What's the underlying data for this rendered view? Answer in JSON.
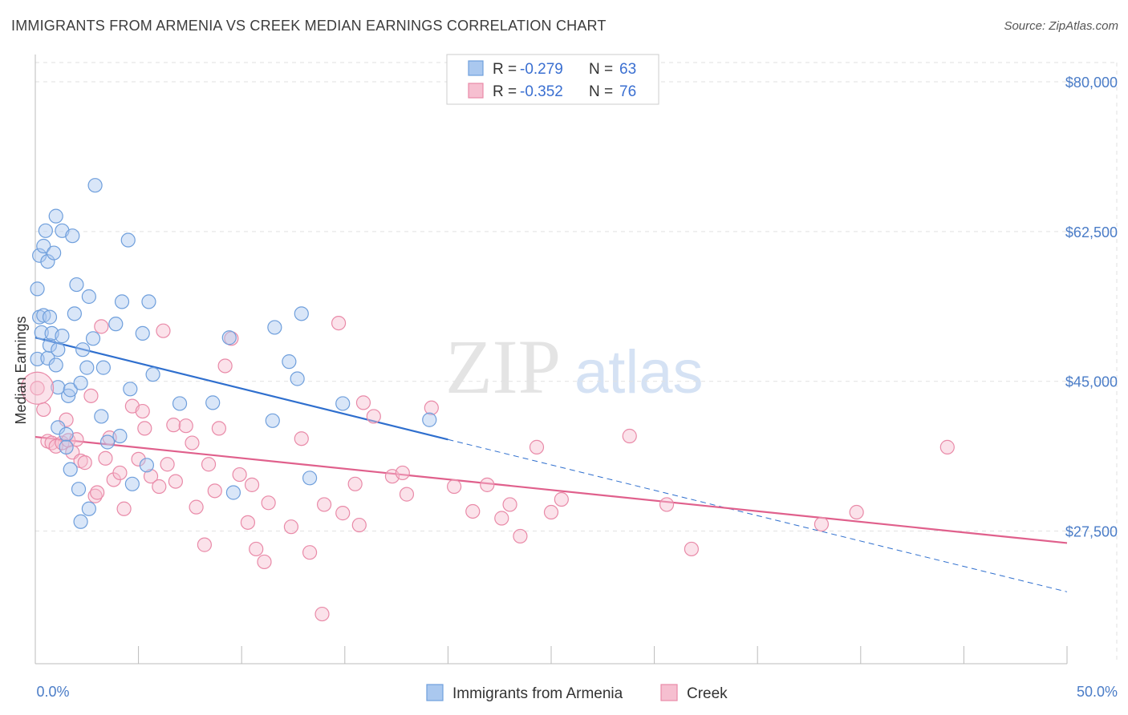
{
  "title": "IMMIGRANTS FROM ARMENIA VS CREEK MEDIAN EARNINGS CORRELATION CHART",
  "source": "Source: ZipAtlas.com",
  "watermark": {
    "zip": "ZIP",
    "atlas": "atlas"
  },
  "colors": {
    "blue_fill": "#aac8ef",
    "blue_stroke": "#6f9fdc",
    "blue_line": "#2f6fce",
    "pink_fill": "#f6bfd0",
    "pink_stroke": "#e98aa8",
    "pink_line": "#e0608c",
    "grid": "#e2e2e2",
    "axis_label": "#4a7cc7"
  },
  "legend": {
    "rows": [
      {
        "r_label": "R =",
        "r_value": "-0.279",
        "n_label": "N =",
        "n_value": "63"
      },
      {
        "r_label": "R =",
        "r_value": "-0.352",
        "n_label": "N =",
        "n_value": "76"
      }
    ]
  },
  "chart_data": {
    "type": "scatter",
    "xlabel": "",
    "ylabel": "Median Earnings",
    "xlim": [
      0,
      50
    ],
    "ylim": [
      12000,
      83000
    ],
    "x_tick_labels": [
      "0.0%",
      "50.0%"
    ],
    "y_ticks": [
      27500,
      45000,
      62500,
      80000
    ],
    "y_tick_labels": [
      "$27,500",
      "$45,000",
      "$62,500",
      "$80,000"
    ],
    "grid": true,
    "legend_placement": "top-center",
    "series": [
      {
        "name": "Immigrants from Armenia",
        "color": "blue",
        "trend": {
          "x0": 0,
          "y0": 50100,
          "x1_solid": 20,
          "y1_solid": 38200,
          "x1": 50,
          "y1": 20400
        },
        "points": [
          [
            0.1,
            55800
          ],
          [
            0.1,
            47600
          ],
          [
            0.2,
            52500
          ],
          [
            0.2,
            59700
          ],
          [
            0.3,
            50700
          ],
          [
            0.4,
            52700
          ],
          [
            0.4,
            60800
          ],
          [
            0.5,
            62600
          ],
          [
            0.6,
            59000
          ],
          [
            0.6,
            47700
          ],
          [
            0.7,
            52500
          ],
          [
            0.7,
            49200
          ],
          [
            0.8,
            50600
          ],
          [
            0.9,
            60000
          ],
          [
            1.0,
            64300
          ],
          [
            1.0,
            46900
          ],
          [
            1.1,
            48700
          ],
          [
            1.1,
            44300
          ],
          [
            1.1,
            39600
          ],
          [
            1.3,
            62600
          ],
          [
            1.3,
            50300
          ],
          [
            1.5,
            38800
          ],
          [
            1.5,
            37300
          ],
          [
            1.6,
            43300
          ],
          [
            1.7,
            34700
          ],
          [
            1.7,
            44000
          ],
          [
            1.8,
            62000
          ],
          [
            1.9,
            52900
          ],
          [
            2.0,
            56300
          ],
          [
            2.1,
            32400
          ],
          [
            2.2,
            28600
          ],
          [
            2.2,
            44800
          ],
          [
            2.3,
            48700
          ],
          [
            2.5,
            46600
          ],
          [
            2.6,
            54900
          ],
          [
            2.6,
            30100
          ],
          [
            2.8,
            50000
          ],
          [
            2.9,
            67900
          ],
          [
            3.2,
            40900
          ],
          [
            3.3,
            46600
          ],
          [
            3.5,
            37900
          ],
          [
            3.9,
            51700
          ],
          [
            4.1,
            38600
          ],
          [
            4.2,
            54300
          ],
          [
            4.5,
            61500
          ],
          [
            4.6,
            44100
          ],
          [
            4.7,
            33000
          ],
          [
            5.2,
            50600
          ],
          [
            5.4,
            35200
          ],
          [
            5.5,
            54300
          ],
          [
            5.7,
            45800
          ],
          [
            7.0,
            42400
          ],
          [
            8.6,
            42500
          ],
          [
            9.6,
            32000
          ],
          [
            9.4,
            50100
          ],
          [
            11.5,
            40400
          ],
          [
            11.6,
            51300
          ],
          [
            12.3,
            47300
          ],
          [
            12.7,
            45300
          ],
          [
            12.9,
            52900
          ],
          [
            13.3,
            33700
          ],
          [
            14.9,
            42400
          ],
          [
            19.1,
            40500
          ]
        ]
      },
      {
        "name": "Creek",
        "color": "pink",
        "trend": {
          "x0": 0,
          "y0": 38500,
          "x1": 50,
          "y1": 26100
        },
        "points": [
          [
            0.1,
            44200
          ],
          [
            0.4,
            41700
          ],
          [
            0.6,
            38000
          ],
          [
            0.8,
            37800
          ],
          [
            1.0,
            37400
          ],
          [
            1.3,
            37800
          ],
          [
            1.5,
            40500
          ],
          [
            1.6,
            38100
          ],
          [
            1.8,
            36700
          ],
          [
            2.0,
            38200
          ],
          [
            2.2,
            35700
          ],
          [
            2.4,
            35500
          ],
          [
            2.7,
            43300
          ],
          [
            2.9,
            31600
          ],
          [
            3.0,
            32000
          ],
          [
            3.2,
            51400
          ],
          [
            3.4,
            36000
          ],
          [
            3.6,
            38400
          ],
          [
            3.8,
            33500
          ],
          [
            4.1,
            34300
          ],
          [
            4.3,
            30100
          ],
          [
            4.7,
            42100
          ],
          [
            5.0,
            35900
          ],
          [
            5.2,
            41500
          ],
          [
            5.3,
            39500
          ],
          [
            5.6,
            33900
          ],
          [
            6.0,
            32700
          ],
          [
            6.2,
            50900
          ],
          [
            6.4,
            35300
          ],
          [
            6.7,
            39900
          ],
          [
            6.8,
            33300
          ],
          [
            7.3,
            39800
          ],
          [
            7.6,
            37800
          ],
          [
            7.8,
            30300
          ],
          [
            8.2,
            25900
          ],
          [
            8.4,
            35300
          ],
          [
            8.7,
            32200
          ],
          [
            8.9,
            39500
          ],
          [
            9.2,
            46800
          ],
          [
            9.5,
            50000
          ],
          [
            9.9,
            34100
          ],
          [
            10.3,
            28500
          ],
          [
            10.5,
            32900
          ],
          [
            10.7,
            25400
          ],
          [
            11.1,
            23900
          ],
          [
            11.3,
            30800
          ],
          [
            12.4,
            28000
          ],
          [
            12.9,
            38300
          ],
          [
            13.3,
            25000
          ],
          [
            14.0,
            30600
          ],
          [
            14.7,
            51800
          ],
          [
            14.9,
            29600
          ],
          [
            15.7,
            28200
          ],
          [
            15.5,
            33000
          ],
          [
            15.9,
            42500
          ],
          [
            16.4,
            40900
          ],
          [
            17.3,
            33900
          ],
          [
            17.8,
            34300
          ],
          [
            18.0,
            31800
          ],
          [
            19.2,
            41900
          ],
          [
            20.3,
            32700
          ],
          [
            21.2,
            29800
          ],
          [
            21.9,
            32900
          ],
          [
            23.0,
            30600
          ],
          [
            23.5,
            26900
          ],
          [
            24.3,
            37300
          ],
          [
            25.0,
            29700
          ],
          [
            25.5,
            31200
          ],
          [
            28.8,
            38600
          ],
          [
            30.6,
            30600
          ],
          [
            31.8,
            25400
          ],
          [
            38.1,
            28300
          ],
          [
            39.8,
            29700
          ],
          [
            44.2,
            37300
          ],
          [
            22.6,
            29000
          ],
          [
            13.9,
            17800
          ]
        ]
      }
    ]
  }
}
